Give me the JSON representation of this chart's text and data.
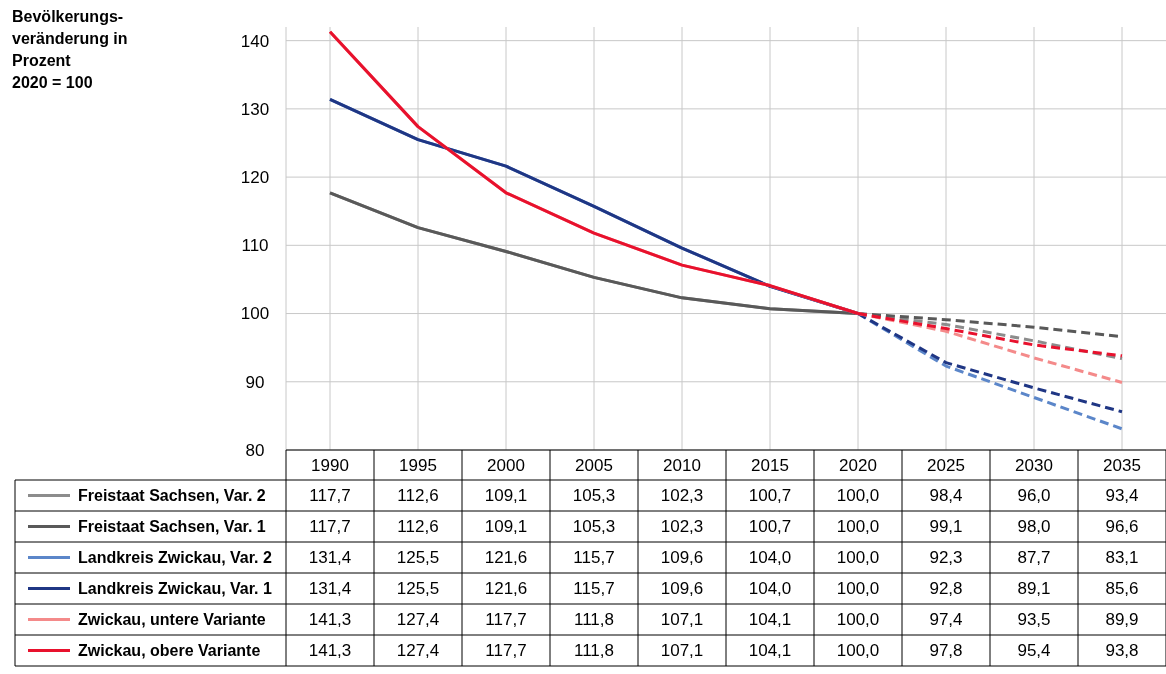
{
  "chart_data": {
    "type": "line",
    "annotations": [
      "Bevölkerungs-\nveränderung in\nProzent\n2020 = 100"
    ],
    "categories": [
      "1990",
      "1995",
      "2000",
      "2005",
      "2010",
      "2015",
      "2020",
      "2025",
      "2030",
      "2035"
    ],
    "ylim": [
      80,
      142
    ],
    "yticks": [
      80,
      90,
      100,
      110,
      120,
      130,
      140
    ],
    "grid": true,
    "legend": "bottom left",
    "marker": "none",
    "series": [
      {
        "name": "Freistaat Sachsen, Var. 2",
        "color": "#8c8c8c",
        "line_style": "dashed",
        "values": [
          117.7,
          112.6,
          109.1,
          105.3,
          102.3,
          100.7,
          100.0,
          98.4,
          96.0,
          93.4
        ],
        "value_labels": [
          "117,7",
          "112,6",
          "109,1",
          "105,3",
          "102,3",
          "100,7",
          "100,0",
          "98,4",
          "96,0",
          "93,4"
        ]
      },
      {
        "name": "Freistaat Sachsen, Var. 1",
        "color": "#595959",
        "line_style": "dashed",
        "values": [
          117.7,
          112.6,
          109.1,
          105.3,
          102.3,
          100.7,
          100.0,
          99.1,
          98.0,
          96.6
        ],
        "value_labels": [
          "117,7",
          "112,6",
          "109,1",
          "105,3",
          "102,3",
          "100,7",
          "100,0",
          "99,1",
          "98,0",
          "96,6"
        ]
      },
      {
        "name": "Landkreis Zwickau, Var. 2",
        "color": "#5b86c9",
        "line_style": "dashed",
        "values": [
          131.4,
          125.5,
          121.6,
          115.7,
          109.6,
          104.0,
          100.0,
          92.3,
          87.7,
          83.1
        ],
        "value_labels": [
          "131,4",
          "125,5",
          "121,6",
          "115,7",
          "109,6",
          "104,0",
          "100,0",
          "92,3",
          "87,7",
          "83,1"
        ]
      },
      {
        "name": "Landkreis Zwickau, Var. 1",
        "color": "#1f3684",
        "line_style": "dashed",
        "values": [
          131.4,
          125.5,
          121.6,
          115.7,
          109.6,
          104.0,
          100.0,
          92.8,
          89.1,
          85.6
        ],
        "value_labels": [
          "131,4",
          "125,5",
          "121,6",
          "115,7",
          "109,6",
          "104,0",
          "100,0",
          "92,8",
          "89,1",
          "85,6"
        ]
      },
      {
        "name": "Zwickau, untere Variante",
        "color": "#f48a8a",
        "line_style": "dashed",
        "values": [
          141.3,
          127.4,
          117.7,
          111.8,
          107.1,
          104.1,
          100.0,
          97.4,
          93.5,
          89.9
        ],
        "value_labels": [
          "141,3",
          "127,4",
          "117,7",
          "111,8",
          "107,1",
          "104,1",
          "100,0",
          "97,4",
          "93,5",
          "89,9"
        ]
      },
      {
        "name": "Zwickau, obere Variante",
        "color": "#e8112d",
        "line_style": "dashed",
        "values": [
          141.3,
          127.4,
          117.7,
          111.8,
          107.1,
          104.1,
          100.0,
          97.8,
          95.4,
          93.8
        ],
        "value_labels": [
          "141,3",
          "127,4",
          "117,7",
          "111,8",
          "107,1",
          "104,1",
          "100,0",
          "97,8",
          "95,4",
          "93,8"
        ]
      }
    ]
  }
}
